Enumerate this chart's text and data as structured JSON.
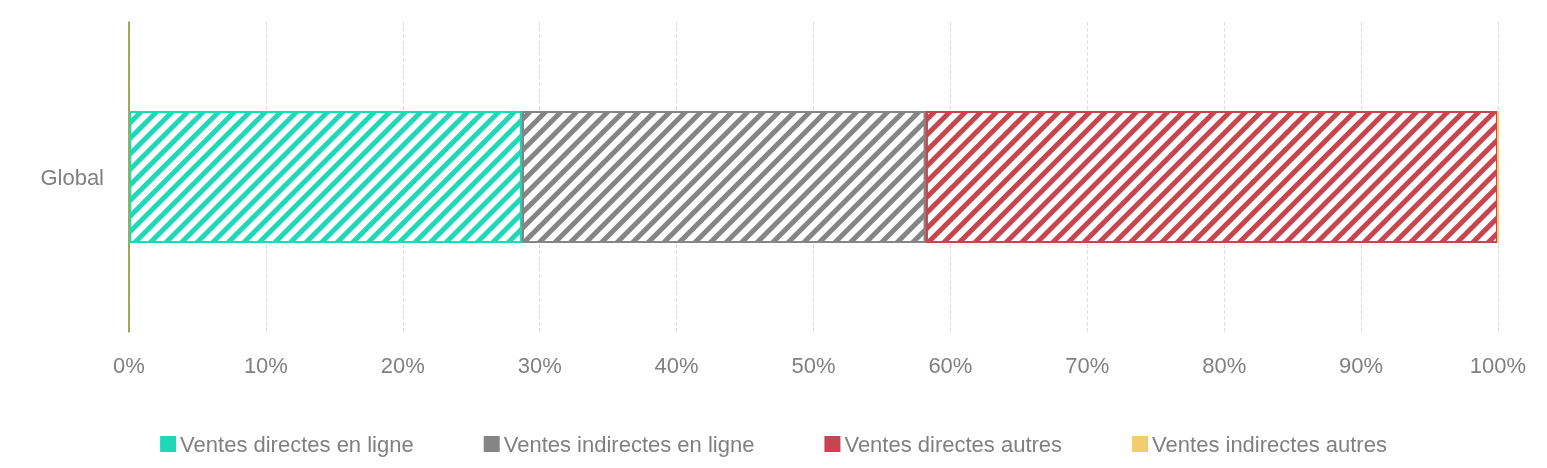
{
  "chart_data": {
    "type": "bar",
    "orientation": "horizontal",
    "stacked": true,
    "categories": [
      "Global"
    ],
    "series": [
      {
        "name": "Ventes directes en ligne",
        "color": "#1fd8b8",
        "values": [
          28.7
        ]
      },
      {
        "name": "Ventes indirectes en ligne",
        "color": "#858585",
        "values": [
          29.5
        ]
      },
      {
        "name": "Ventes directes autres",
        "color": "#c8444f",
        "values": [
          41.8
        ]
      },
      {
        "name": "Ventes indirectes autres",
        "color": "#f2cc6e",
        "values": [
          0
        ]
      }
    ],
    "xlim": [
      0,
      100
    ],
    "xticks": [
      {
        "value": 0,
        "label": "0%"
      },
      {
        "value": 10,
        "label": "10%"
      },
      {
        "value": 20,
        "label": "20%"
      },
      {
        "value": 30,
        "label": "30%"
      },
      {
        "value": 40,
        "label": "40%"
      },
      {
        "value": 50,
        "label": "50%"
      },
      {
        "value": 60,
        "label": "60%"
      },
      {
        "value": 70,
        "label": "70%"
      },
      {
        "value": 80,
        "label": "80%"
      },
      {
        "value": 90,
        "label": "90%"
      },
      {
        "value": 100,
        "label": "100%"
      }
    ],
    "grid": "x",
    "legend": "bottom"
  }
}
